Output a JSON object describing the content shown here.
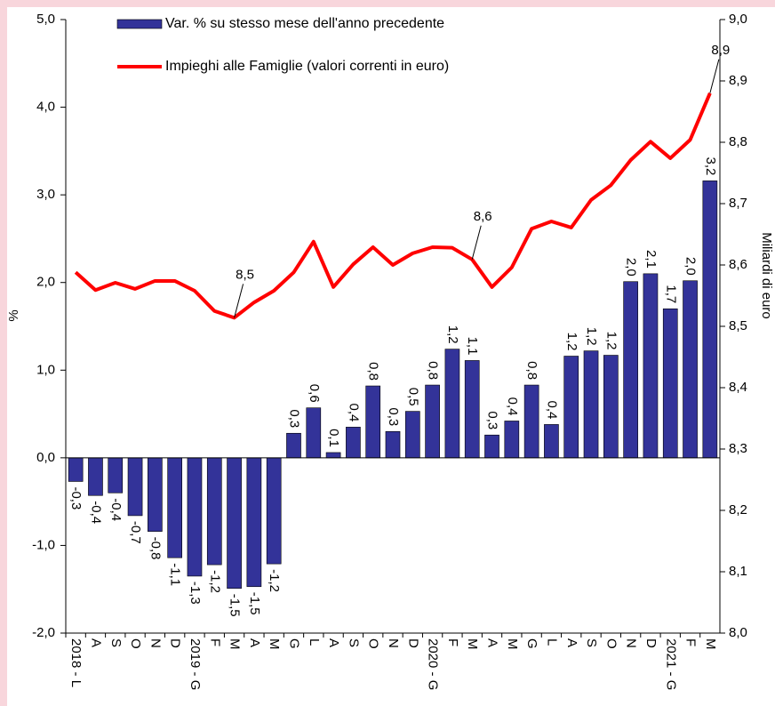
{
  "chart_data": {
    "type": "bar_line",
    "y_label": "%",
    "y2_label": "Miliardi di euro",
    "categories": [
      "2018 - L",
      "A",
      "S",
      "O",
      "N",
      "D",
      "2019 - G",
      "F",
      "M",
      "A",
      "M",
      "G",
      "L",
      "A",
      "S",
      "O",
      "N",
      "D",
      "2020 - G",
      "F",
      "M",
      "A",
      "M",
      "G",
      "L",
      "A",
      "S",
      "O",
      "N",
      "D",
      "2021 - G",
      "F",
      "M"
    ],
    "series": [
      {
        "name": "Var. % su stesso mese dell'anno precedente",
        "color": "#333399",
        "kind": "bar",
        "values": [
          -0.27,
          -0.43,
          -0.4,
          -0.66,
          -0.84,
          -1.14,
          -1.35,
          -1.22,
          -1.49,
          -1.47,
          -1.21,
          0.28,
          0.57,
          0.06,
          0.35,
          0.82,
          0.3,
          0.53,
          0.83,
          1.24,
          1.11,
          0.26,
          0.42,
          0.83,
          0.38,
          1.16,
          1.22,
          1.17,
          2.01,
          2.1,
          1.7,
          2.02,
          3.16
        ],
        "value_labels": [
          "-0,3",
          "-0,4",
          "-0,4",
          "-0,7",
          "-0,8",
          "-1,1",
          "-1,3",
          "-1,2",
          "-1,5",
          "-1,5",
          "-1,2",
          "0,3",
          "0,6",
          "0,1",
          "0,4",
          "0,8",
          "0,3",
          "0,5",
          "0,8",
          "1,2",
          "1,1",
          "0,3",
          "0,4",
          "0,8",
          "0,4",
          "1,2",
          "1,2",
          "1,2",
          "2,0",
          "2,1",
          "1,7",
          "2,0",
          "3,2"
        ]
      },
      {
        "name": "Impieghi alle Famiglie (valori correnti in euro)",
        "color": "#ff0000",
        "kind": "line",
        "axis": "y2",
        "values": [
          8.588,
          8.559,
          8.571,
          8.561,
          8.574,
          8.574,
          8.558,
          8.525,
          8.514,
          8.539,
          8.558,
          8.588,
          8.638,
          8.564,
          8.601,
          8.629,
          8.6,
          8.619,
          8.629,
          8.628,
          8.609,
          8.564,
          8.596,
          8.659,
          8.671,
          8.661,
          8.706,
          8.73,
          8.771,
          8.801,
          8.774,
          8.804,
          8.88
        ],
        "value_labels": [
          null,
          null,
          null,
          null,
          null,
          null,
          null,
          null,
          "8,5",
          null,
          null,
          null,
          null,
          null,
          null,
          null,
          null,
          null,
          null,
          null,
          "8,6",
          null,
          null,
          null,
          null,
          null,
          null,
          null,
          null,
          null,
          null,
          null,
          "8,9"
        ]
      }
    ],
    "ylim": [
      -2,
      5
    ],
    "yticks": [
      {
        "value": -2,
        "label": "-2,0"
      },
      {
        "value": -1,
        "label": "-1,0"
      },
      {
        "value": 0,
        "label": "0,0"
      },
      {
        "value": 1,
        "label": "1,0"
      },
      {
        "value": 2,
        "label": "2,0"
      },
      {
        "value": 3,
        "label": "3,0"
      },
      {
        "value": 4,
        "label": "4,0"
      },
      {
        "value": 5,
        "label": "5,0"
      }
    ],
    "y2lim": [
      8.0,
      9.0
    ],
    "y2ticks": [
      {
        "value": 8.0,
        "label": "8,0"
      },
      {
        "value": 8.1,
        "label": "8,1"
      },
      {
        "value": 8.2,
        "label": "8,2"
      },
      {
        "value": 8.3,
        "label": "8,3"
      },
      {
        "value": 8.4,
        "label": "8,4"
      },
      {
        "value": 8.5,
        "label": "8,5"
      },
      {
        "value": 8.6,
        "label": "8,6"
      },
      {
        "value": 8.7,
        "label": "8,7"
      },
      {
        "value": 8.8,
        "label": "8,8"
      },
      {
        "value": 8.9,
        "label": "8,9"
      },
      {
        "value": 9.0,
        "label": "9,0"
      }
    ]
  }
}
